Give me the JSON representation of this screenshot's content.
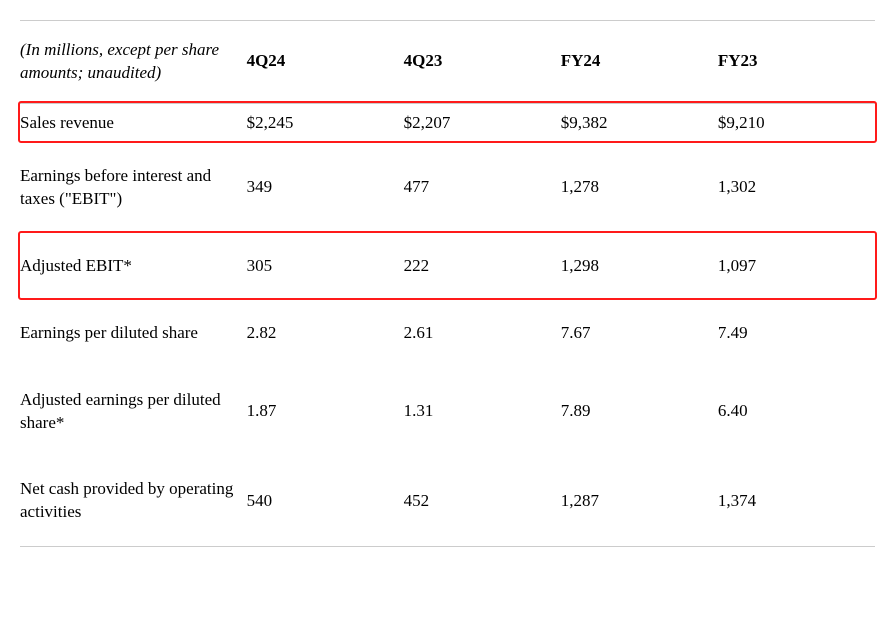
{
  "table": {
    "header_note": "(In millions, except per share amounts; unaudited)",
    "columns": [
      "4Q24",
      "4Q23",
      "FY24",
      "FY23"
    ],
    "rows": [
      {
        "label": "Sales revenue",
        "values": [
          "$2,245",
          "$2,207",
          "$9,382",
          "$9,210"
        ],
        "highlight": true
      },
      {
        "label": "Earnings before interest and taxes (\"EBIT\")",
        "values": [
          "349",
          "477",
          "1,278",
          "1,302"
        ],
        "highlight": false
      },
      {
        "label": "Adjusted EBIT*",
        "values": [
          "305",
          "222",
          "1,298",
          "1,097"
        ],
        "highlight": true
      },
      {
        "label": "Earnings per diluted share",
        "values": [
          "2.82",
          "2.61",
          "7.67",
          "7.49"
        ],
        "highlight": false
      },
      {
        "label": "Adjusted earnings per diluted share*",
        "values": [
          "1.87",
          "1.31",
          "7.89",
          "6.40"
        ],
        "highlight": false
      },
      {
        "label": "Net cash provided by operating activities",
        "values": [
          "540",
          "452",
          "1,287",
          "1,374"
        ],
        "highlight": false
      }
    ],
    "styling": {
      "highlight_border_color": "#ff1a1a",
      "border_color": "#cccccc",
      "text_color": "#000000",
      "background_color": "#ffffff",
      "font_family": "Georgia, Times New Roman, serif",
      "font_size_pt": 13
    }
  }
}
